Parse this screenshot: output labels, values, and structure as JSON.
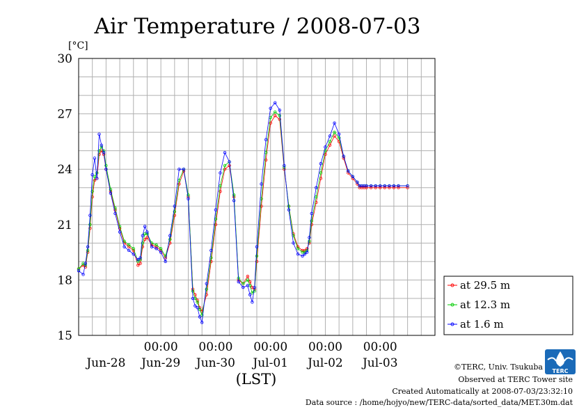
{
  "chart_data": {
    "type": "line",
    "title": "Air Temperature / 2008-07-03",
    "unit_label": "[°C]",
    "xlabel": "(LST)",
    "ylabel": "",
    "ylim": [
      15,
      30
    ],
    "y_ticks": [
      15,
      18,
      21,
      24,
      27,
      30
    ],
    "x_axis": {
      "start": "2008-06-27T12:00",
      "end": "2008-07-03T24:00",
      "midnight_labels": [
        "00:00",
        "00:00",
        "00:00",
        "00:00",
        "00:00"
      ],
      "date_labels": [
        "Jun-28",
        "Jun-29",
        "Jun-30",
        "Jul-01",
        "Jul-02",
        "Jul-03"
      ]
    },
    "grid": true,
    "legend_position": "right",
    "x_hours": [
      0,
      2,
      3,
      4,
      5,
      6,
      7,
      8,
      9,
      10,
      11,
      12,
      14,
      16,
      18,
      20,
      22,
      24,
      26,
      27,
      28,
      29,
      30,
      32,
      34,
      36,
      38,
      40,
      42,
      44,
      46,
      48,
      50,
      51,
      52,
      53,
      54,
      56,
      58,
      60,
      62,
      64,
      66,
      68,
      70,
      72,
      74,
      75,
      76,
      77,
      78,
      80,
      82,
      84,
      86,
      88,
      90,
      92,
      94,
      96,
      98,
      99,
      100,
      101,
      102,
      104,
      106,
      108,
      110,
      112,
      114,
      116,
      118,
      120,
      122,
      123,
      124,
      125,
      126,
      128,
      130,
      132,
      134,
      136,
      138,
      140,
      144
    ],
    "series": [
      {
        "name": "at 29.5 m",
        "color": "#ff0000",
        "values": [
          18.6,
          18.8,
          18.7,
          19.5,
          20.8,
          22.5,
          23.4,
          23.5,
          24.8,
          25.0,
          24.8,
          24.0,
          22.8,
          21.8,
          20.8,
          20.0,
          19.8,
          19.6,
          18.8,
          18.9,
          19.8,
          20.2,
          20.3,
          19.9,
          19.8,
          19.6,
          19.2,
          20.0,
          21.5,
          23.2,
          23.9,
          22.5,
          17.5,
          17.2,
          16.9,
          16.5,
          16.3,
          17.2,
          19.0,
          21.0,
          22.8,
          24.0,
          24.2,
          22.5,
          18.0,
          17.8,
          18.2,
          17.9,
          17.6,
          17.5,
          19.0,
          22.0,
          24.5,
          26.5,
          26.9,
          26.7,
          24.0,
          22.0,
          20.5,
          19.8,
          19.6,
          19.6,
          19.7,
          20.0,
          21.0,
          22.2,
          23.5,
          24.8,
          25.3,
          25.8,
          25.5,
          24.6,
          23.8,
          23.5,
          23.2,
          23.0,
          23.0,
          23.0,
          23.0,
          23.0,
          23.0,
          23.0,
          23.0,
          23.0,
          23.0,
          23.0,
          23.0
        ]
      },
      {
        "name": "at 12.3 m",
        "color": "#00cc00",
        "values": [
          18.6,
          18.9,
          18.8,
          19.6,
          21.0,
          22.8,
          23.6,
          23.8,
          25.0,
          25.2,
          25.0,
          24.2,
          22.9,
          21.9,
          20.9,
          20.1,
          19.9,
          19.7,
          19.0,
          19.1,
          20.0,
          20.5,
          20.5,
          20.0,
          19.9,
          19.7,
          19.3,
          20.2,
          21.7,
          23.4,
          24.0,
          22.6,
          17.4,
          17.0,
          16.8,
          16.4,
          16.1,
          17.5,
          19.2,
          21.3,
          23.1,
          24.2,
          24.4,
          22.6,
          18.1,
          17.8,
          18.0,
          17.7,
          17.3,
          17.4,
          19.3,
          22.4,
          24.9,
          26.8,
          27.1,
          26.9,
          24.1,
          22.0,
          20.4,
          19.7,
          19.5,
          19.5,
          19.6,
          20.1,
          21.2,
          22.5,
          23.8,
          25.0,
          25.5,
          26.0,
          25.7,
          24.7,
          23.9,
          23.6,
          23.3,
          23.1,
          23.1,
          23.1,
          23.1,
          23.1,
          23.1,
          23.1,
          23.1,
          23.1,
          23.1,
          23.1,
          23.1
        ]
      },
      {
        "name": "at 1.6 m",
        "color": "#0000ff",
        "values": [
          18.5,
          18.3,
          18.9,
          19.8,
          21.5,
          23.7,
          24.6,
          23.5,
          25.9,
          25.3,
          24.9,
          24.0,
          22.7,
          21.6,
          20.6,
          19.8,
          19.6,
          19.4,
          19.1,
          19.2,
          20.4,
          20.9,
          20.6,
          19.8,
          19.7,
          19.5,
          19.0,
          20.4,
          22.0,
          24.0,
          24.0,
          22.4,
          17.0,
          16.6,
          16.5,
          16.0,
          15.7,
          17.8,
          19.6,
          21.8,
          23.8,
          24.9,
          24.4,
          22.3,
          17.9,
          17.6,
          17.7,
          17.2,
          16.8,
          17.6,
          19.8,
          23.2,
          25.6,
          27.3,
          27.6,
          27.2,
          24.2,
          21.8,
          20.0,
          19.4,
          19.3,
          19.4,
          19.5,
          20.3,
          21.6,
          23.0,
          24.3,
          25.2,
          25.8,
          26.5,
          25.9,
          24.7,
          23.9,
          23.6,
          23.3,
          23.1,
          23.1,
          23.1,
          23.1,
          23.1,
          23.1,
          23.1,
          23.1,
          23.1,
          23.1,
          23.1,
          23.1
        ]
      }
    ]
  },
  "credits": {
    "copyright": "©TERC, Univ. Tsukuba",
    "observed": "Observed at TERC Tower site",
    "created": "Created Automatically at 2008-07-03/23:32:10",
    "source": "Data source : /home/hojyo/new/TERC-data/sorted_data/MET.30m.dat",
    "logo_text": "TERC"
  }
}
